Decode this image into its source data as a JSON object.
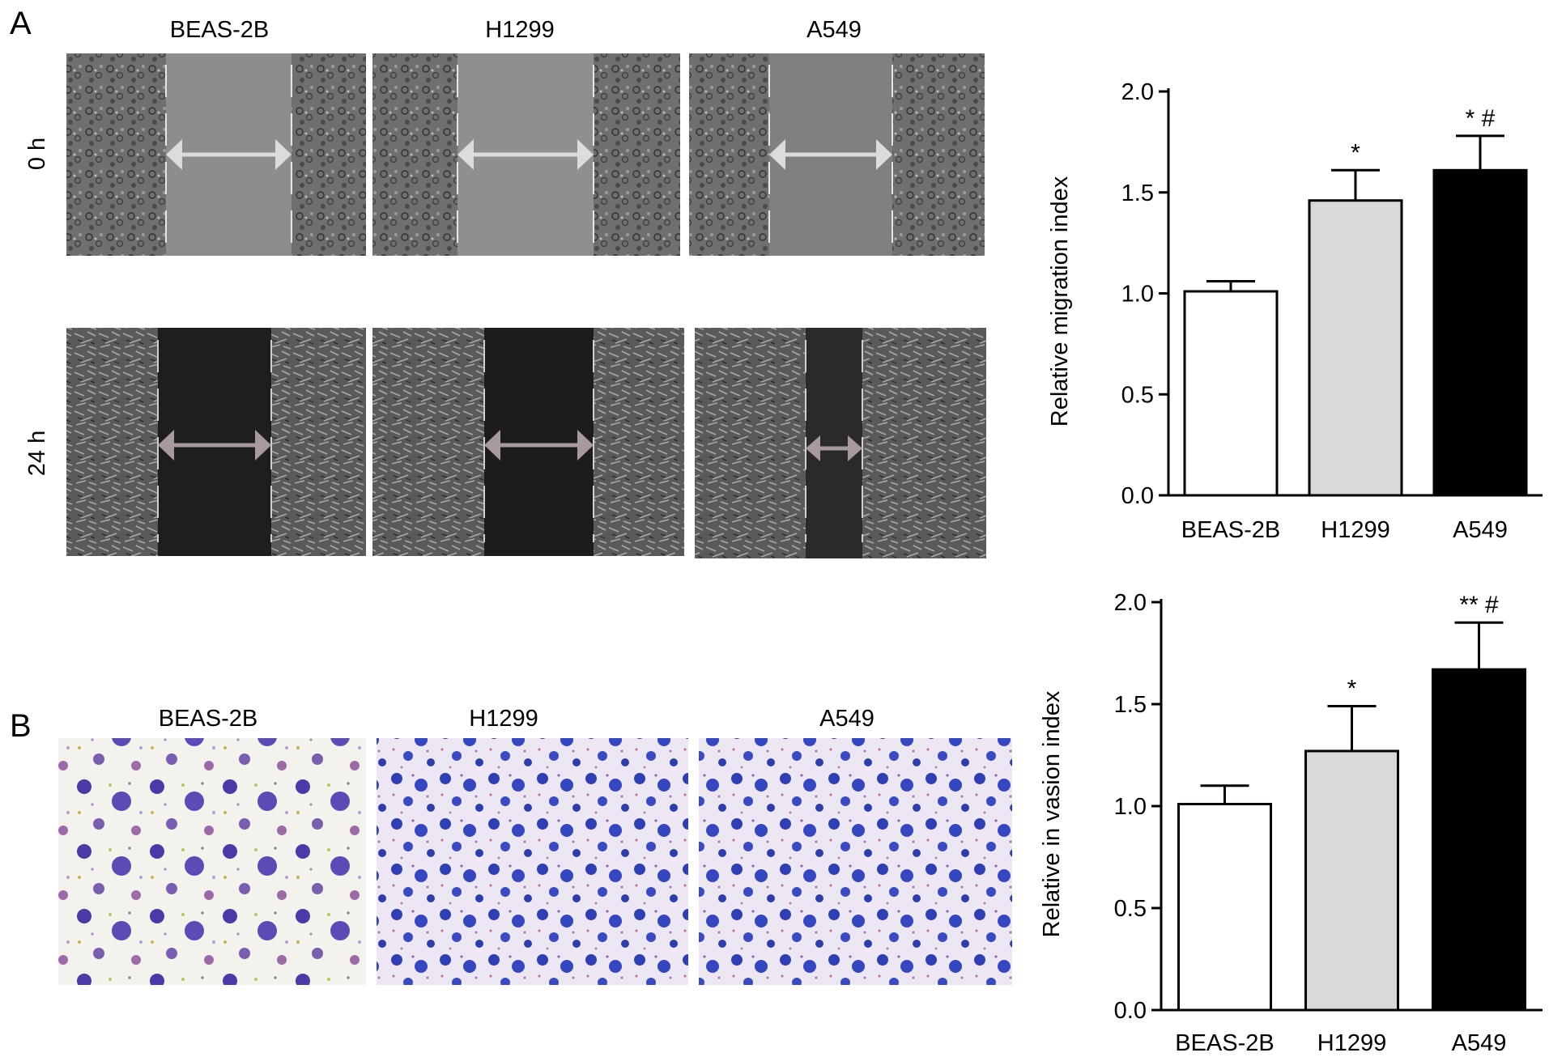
{
  "figure": {
    "panel_a_label": "A",
    "panel_b_label": "B",
    "column_labels": [
      "BEAS-2B",
      "H1299",
      "A549"
    ],
    "row_labels": [
      "0 h",
      "24 h"
    ]
  },
  "chart_data": [
    {
      "type": "bar",
      "title": "",
      "xlabel": "",
      "ylabel": "Relative migration index",
      "ylim": [
        0,
        2
      ],
      "yticks": [
        "0.0",
        "0.5",
        "1.0",
        "1.5",
        "2.0"
      ],
      "categories": [
        "BEAS-2B",
        "H1299",
        "A549"
      ],
      "values": [
        1.01,
        1.46,
        1.61
      ],
      "errors": [
        0.05,
        0.15,
        0.17
      ],
      "annotations": [
        "",
        "*",
        "* #"
      ],
      "colors": [
        "#ffffff",
        "#d9d9d9",
        "#000000"
      ],
      "grid": false
    },
    {
      "type": "bar",
      "title": "",
      "xlabel": "",
      "ylabel": "Relative in vasion index",
      "ylim": [
        0,
        2
      ],
      "yticks": [
        "0.0",
        "0.5",
        "1.0",
        "1.5",
        "2.0"
      ],
      "categories": [
        "BEAS-2B",
        "H1299",
        "A549"
      ],
      "values": [
        1.01,
        1.27,
        1.67
      ],
      "errors": [
        0.09,
        0.22,
        0.23
      ],
      "annotations": [
        "",
        "*",
        "** #"
      ],
      "colors": [
        "#ffffff",
        "#d9d9d9",
        "#000000"
      ],
      "grid": false
    }
  ]
}
